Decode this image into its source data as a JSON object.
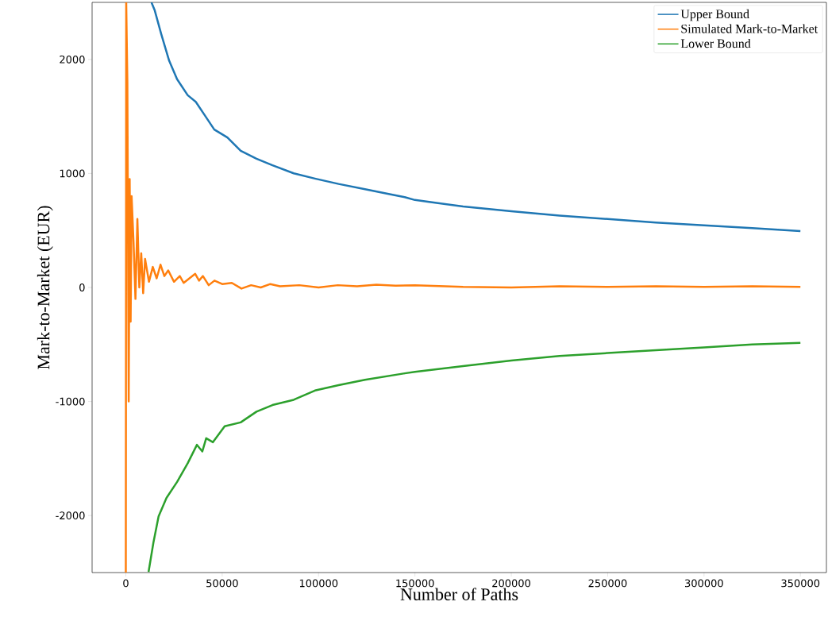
{
  "chart_data": {
    "type": "line",
    "xlabel": "Number of Paths",
    "ylabel": "Mark-to-Market (EUR)",
    "xlim": [
      -17500,
      363500
    ],
    "ylim": [
      -2500,
      2500
    ],
    "xticks": [
      0,
      50000,
      100000,
      150000,
      200000,
      250000,
      300000,
      350000
    ],
    "yticks": [
      -2000,
      -1000,
      0,
      1000,
      2000
    ],
    "legend": "top right",
    "grid": false,
    "marker": "none",
    "line_style": "solid",
    "series": [
      {
        "name": "Upper Bound",
        "color": "#1f77b4",
        "x": [
          13300,
          15000,
          18400,
          22500,
          26600,
          32100,
          36300,
          40400,
          45900,
          52700,
          59600,
          67800,
          76100,
          87100,
          98100,
          110400,
          124100,
          137900,
          144700,
          150000,
          175000,
          200000,
          225000,
          250000,
          275000,
          300000,
          325000,
          350000
        ],
        "values": [
          2500,
          2430,
          2221,
          1988,
          1826,
          1686,
          1628,
          1524,
          1385,
          1315,
          1199,
          1129,
          1071,
          1001,
          955,
          908,
          862,
          815,
          792,
          767,
          710,
          669,
          630,
          600,
          570,
          545,
          520,
          495
        ]
      },
      {
        "name": "Simulated Mark-to-Market",
        "color": "#ff7f0e",
        "x": [
          0,
          200,
          800,
          1500,
          2000,
          2500,
          3000,
          4000,
          5000,
          6000,
          7000,
          8000,
          9000,
          10000,
          12000,
          14000,
          16000,
          18000,
          20000,
          22000,
          25000,
          28000,
          30000,
          33000,
          36000,
          38000,
          40000,
          43000,
          46000,
          50000,
          55000,
          60000,
          65000,
          70000,
          75000,
          80000,
          90000,
          100000,
          110000,
          120000,
          130000,
          140000,
          150000,
          175000,
          200000,
          225000,
          250000,
          275000,
          300000,
          325000,
          350000
        ],
        "values": [
          -2500,
          2500,
          1800,
          -1000,
          950,
          -300,
          800,
          400,
          -100,
          600,
          0,
          300,
          -50,
          250,
          50,
          180,
          80,
          200,
          100,
          150,
          50,
          100,
          40,
          80,
          120,
          60,
          100,
          20,
          60,
          30,
          40,
          -10,
          20,
          0,
          30,
          10,
          20,
          0,
          20,
          10,
          25,
          15,
          20,
          5,
          0,
          10,
          5,
          10,
          5,
          10,
          5
        ]
      },
      {
        "name": "Lower Bound",
        "color": "#2ca02c",
        "x": [
          11800,
          14300,
          17000,
          21100,
          26600,
          32100,
          36900,
          39700,
          41700,
          45200,
          51300,
          59600,
          67800,
          76100,
          87100,
          98100,
          110400,
          124100,
          144700,
          150000,
          175000,
          200000,
          225000,
          250000,
          275000,
          300000,
          325000,
          350000
        ],
        "values": [
          -2495,
          -2239,
          -2007,
          -1845,
          -1705,
          -1542,
          -1380,
          -1438,
          -1322,
          -1357,
          -1217,
          -1183,
          -1089,
          -1031,
          -985,
          -904,
          -857,
          -810,
          -753,
          -740,
          -690,
          -640,
          -600,
          -575,
          -550,
          -525,
          -500,
          -485
        ]
      }
    ]
  }
}
